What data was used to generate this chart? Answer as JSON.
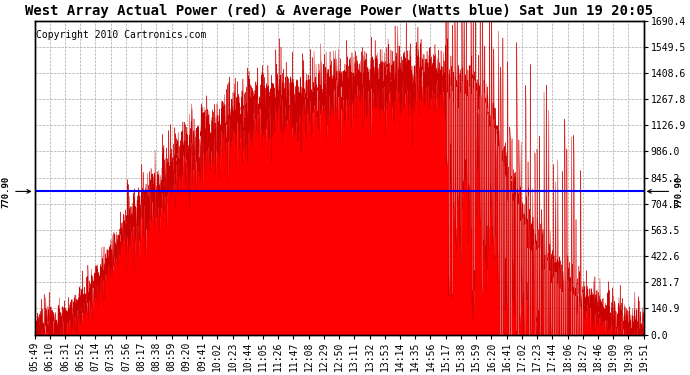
{
  "title": "West Array Actual Power (red) & Average Power (Watts blue) Sat Jun 19 20:05",
  "copyright": "Copyright 2010 Cartronics.com",
  "y_max": 1690.4,
  "y_min": 0.0,
  "y_ticks": [
    0.0,
    140.9,
    281.7,
    422.6,
    563.5,
    704.3,
    845.2,
    986.0,
    1126.9,
    1267.8,
    1408.6,
    1549.5,
    1690.4
  ],
  "average_power": 770.9,
  "avg_label": "770.90",
  "fill_color": "#FF0000",
  "avg_line_color": "#0000FF",
  "background_color": "#FFFFFF",
  "grid_color": "#AAAAAA",
  "x_labels": [
    "05:49",
    "06:10",
    "06:31",
    "06:52",
    "07:14",
    "07:35",
    "07:56",
    "08:17",
    "08:38",
    "08:59",
    "09:20",
    "09:41",
    "10:02",
    "10:23",
    "10:44",
    "11:05",
    "11:26",
    "11:47",
    "12:08",
    "12:29",
    "12:50",
    "13:11",
    "13:32",
    "13:53",
    "14:14",
    "14:35",
    "14:56",
    "15:17",
    "15:38",
    "15:59",
    "16:20",
    "16:41",
    "17:02",
    "17:23",
    "17:44",
    "18:06",
    "18:27",
    "18:46",
    "19:09",
    "19:30",
    "19:51"
  ],
  "power_envelope": [
    30,
    50,
    80,
    150,
    280,
    420,
    560,
    680,
    780,
    880,
    960,
    1040,
    1100,
    1160,
    1200,
    1230,
    1250,
    1270,
    1290,
    1310,
    1330,
    1340,
    1350,
    1355,
    1360,
    1370,
    1380,
    1390,
    1380,
    1370,
    1200,
    900,
    700,
    500,
    380,
    280,
    200,
    140,
    90,
    50,
    20
  ],
  "title_fontsize": 10,
  "tick_fontsize": 7,
  "copyright_fontsize": 7
}
